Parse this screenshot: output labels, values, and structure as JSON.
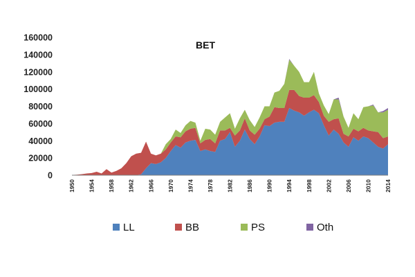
{
  "chart_data": {
    "type": "area",
    "stacked": true,
    "title": "BET",
    "xlabel": "",
    "ylabel": "",
    "xlim": [
      1950,
      2014
    ],
    "ylim": [
      0,
      160000
    ],
    "y_ticks": [
      "0",
      "20000",
      "40000",
      "60000",
      "80000",
      "100000",
      "120000",
      "140000",
      "160000"
    ],
    "x_ticks": [
      "1950",
      "1954",
      "1958",
      "1962",
      "1966",
      "1970",
      "1974",
      "1978",
      "1982",
      "1986",
      "1990",
      "1994",
      "1998",
      "2002",
      "2006",
      "2010",
      "2014"
    ],
    "grid": false,
    "legend_position": "bottom",
    "x": [
      1950,
      1951,
      1952,
      1953,
      1954,
      1955,
      1956,
      1957,
      1958,
      1959,
      1960,
      1961,
      1962,
      1963,
      1964,
      1965,
      1966,
      1967,
      1968,
      1969,
      1970,
      1971,
      1972,
      1973,
      1974,
      1975,
      1976,
      1977,
      1978,
      1979,
      1980,
      1981,
      1982,
      1983,
      1984,
      1985,
      1986,
      1987,
      1988,
      1989,
      1990,
      1991,
      1992,
      1993,
      1994,
      1995,
      1996,
      1997,
      1998,
      1999,
      2000,
      2001,
      2002,
      2003,
      2004,
      2005,
      2006,
      2007,
      2008,
      2009,
      2010,
      2011,
      2012,
      2013,
      2014
    ],
    "series": [
      {
        "name": "LL",
        "color": "#4F81BD",
        "values": [
          0,
          0,
          0,
          0,
          0,
          0,
          0,
          0,
          0,
          0,
          0,
          0,
          0,
          0,
          1000,
          8000,
          14000,
          13000,
          15000,
          20000,
          28000,
          35000,
          32000,
          38000,
          40000,
          41000,
          28000,
          30000,
          28000,
          27000,
          40000,
          42000,
          50000,
          33000,
          40000,
          53000,
          42000,
          36000,
          45000,
          58000,
          57000,
          61000,
          62000,
          62000,
          78000,
          75000,
          73000,
          69000,
          73000,
          76000,
          72000,
          58000,
          46000,
          53000,
          48000,
          38000,
          33000,
          44000,
          40000,
          45000,
          43000,
          38000,
          33000,
          31000,
          36000
        ]
      },
      {
        "name": "BB",
        "color": "#C0504D",
        "values": [
          300,
          600,
          1200,
          2000,
          2500,
          4000,
          2000,
          7000,
          3000,
          5000,
          8000,
          14000,
          22000,
          25000,
          25000,
          31000,
          11000,
          10000,
          10000,
          10000,
          10000,
          10000,
          12000,
          13000,
          14000,
          14000,
          9000,
          11000,
          14000,
          10000,
          12000,
          10000,
          5000,
          13000,
          12000,
          13000,
          10000,
          11000,
          9000,
          7000,
          11000,
          18000,
          16000,
          16000,
          21000,
          24000,
          19000,
          21000,
          17000,
          17000,
          13000,
          11000,
          16000,
          12000,
          18000,
          10000,
          12000,
          10000,
          11000,
          10000,
          9000,
          13000,
          17000,
          12000,
          9000
        ]
      },
      {
        "name": "PS",
        "color": "#9BBB59",
        "values": [
          0,
          0,
          0,
          0,
          0,
          0,
          0,
          0,
          0,
          0,
          0,
          0,
          0,
          0,
          0,
          0,
          0,
          0,
          0,
          6000,
          4000,
          8000,
          5000,
          7000,
          9000,
          6000,
          3000,
          13000,
          11000,
          10000,
          10000,
          15000,
          17000,
          8000,
          14000,
          10000,
          12000,
          9000,
          13000,
          15000,
          12000,
          17000,
          20000,
          28000,
          35000,
          28000,
          28000,
          18000,
          18000,
          27000,
          10000,
          12000,
          9000,
          23000,
          22000,
          20000,
          10000,
          18000,
          14000,
          24000,
          28000,
          30000,
          23000,
          30000,
          31000
        ]
      },
      {
        "name": "Oth",
        "color": "#8064A2",
        "values": [
          0,
          0,
          0,
          0,
          0,
          0,
          0,
          0,
          0,
          0,
          0,
          0,
          0,
          0,
          0,
          0,
          0,
          0,
          0,
          0,
          0,
          0,
          0,
          0,
          0,
          0,
          0,
          0,
          0,
          0,
          0,
          0,
          0,
          0,
          0,
          0,
          0,
          0,
          0,
          0,
          0,
          0,
          0,
          0,
          1000,
          0,
          0,
          0,
          0,
          0,
          0,
          0,
          0,
          0,
          2000,
          0,
          0,
          0,
          0,
          0,
          0,
          1000,
          0,
          1500,
          2000
        ]
      }
    ]
  }
}
